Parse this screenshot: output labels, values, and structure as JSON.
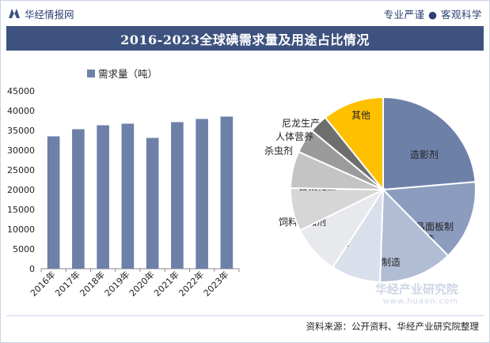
{
  "header": {
    "brand": "华经情报网",
    "slogan": "专业严谨 ● 客观科学"
  },
  "title": "2016-2023全球碘需求量及用途占比情况",
  "watermark": {
    "name": "华经产业研究院",
    "url": "www.huaon.com"
  },
  "source": "资料来源：公开资料、华经产业研究院整理",
  "colors": {
    "bar": "#6d80a8",
    "title_bg": "#3e527f"
  },
  "chart_data": [
    {
      "type": "bar",
      "title": "",
      "legend": "需求量（吨）",
      "categories": [
        "2016年",
        "2017年",
        "2018年",
        "2019年",
        "2020年",
        "2021年",
        "2022年",
        "2023年"
      ],
      "values": [
        33500,
        35300,
        36300,
        36700,
        33100,
        37100,
        37900,
        38500
      ],
      "ylim": [
        0,
        45000
      ],
      "yticks": [
        0,
        5000,
        10000,
        15000,
        20000,
        25000,
        30000,
        35000,
        40000,
        45000
      ],
      "xlabel": "",
      "ylabel": ""
    },
    {
      "type": "pie",
      "title": "",
      "slices": [
        {
          "label": "造影剂",
          "value": 22.0,
          "color": "#6d80a8"
        },
        {
          "label": "液晶面板制造",
          "value": 13.0,
          "color": "#8c9cbe"
        },
        {
          "label": "医药制造",
          "value": 12.0,
          "color": "#b1bdd5"
        },
        {
          "label": "杀菌剂",
          "value": 8.0,
          "color": "#dadfec"
        },
        {
          "label": "饲料添加剂",
          "value": 8.0,
          "color": "#e8e9ec"
        },
        {
          "label": "含氟化工",
          "value": 7.0,
          "color": "#d6d6d6"
        },
        {
          "label": "杀虫剂",
          "value": 6.0,
          "color": "#c4c4c4"
        },
        {
          "label": "人体营养",
          "value": 4.0,
          "color": "#9b9b9b"
        },
        {
          "label": "尼龙生产",
          "value": 3.0,
          "color": "#6e6e6e"
        },
        {
          "label": "其他",
          "value": 10.0,
          "color": "#ffc000"
        }
      ]
    }
  ]
}
